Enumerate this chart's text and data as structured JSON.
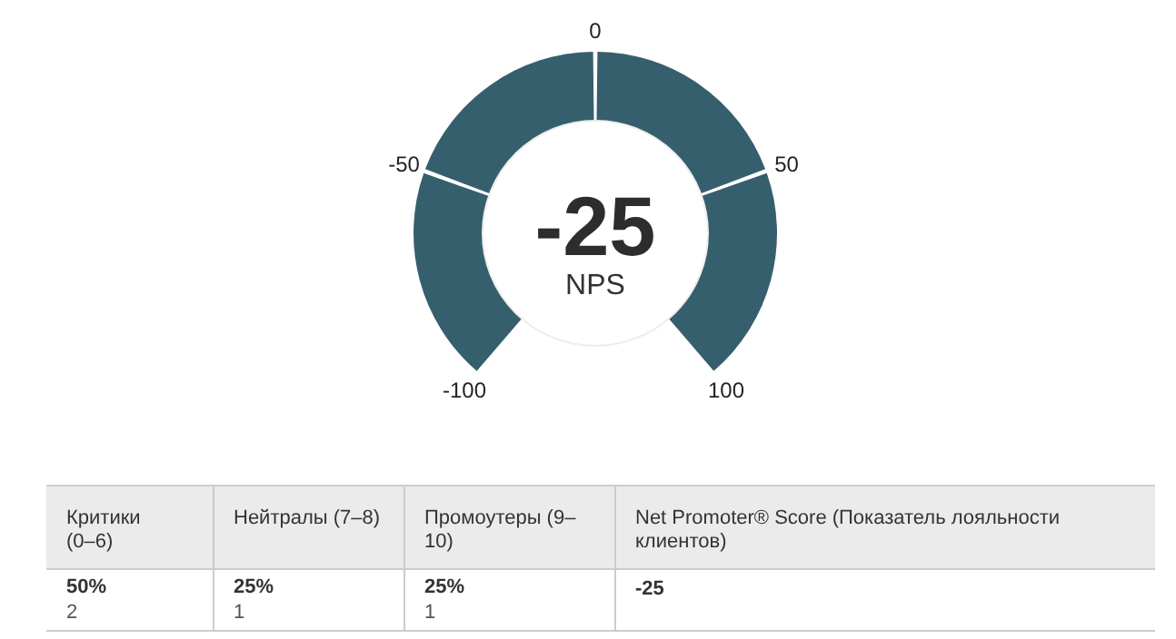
{
  "chart_data": {
    "type": "donut",
    "categories": [
      null,
      null,
      null,
      null
    ],
    "values": [
      25,
      25,
      25,
      25
    ],
    "colors": [
      "#365f6e",
      "#365f6e",
      "#365f6e",
      "#365f6e"
    ],
    "annotations": [
      "-25",
      "NPS",
      "-100",
      "-50",
      "0",
      "50",
      "100",
      "Критики (0–6)",
      "Нейтралы (7–8)",
      "Промоутеры (9–10)",
      "Net Promoter® Score (Показатель лояльности клиентов)",
      "50%",
      "25%",
      "25%",
      "-25",
      "2",
      "1",
      "1"
    ]
  }
}
